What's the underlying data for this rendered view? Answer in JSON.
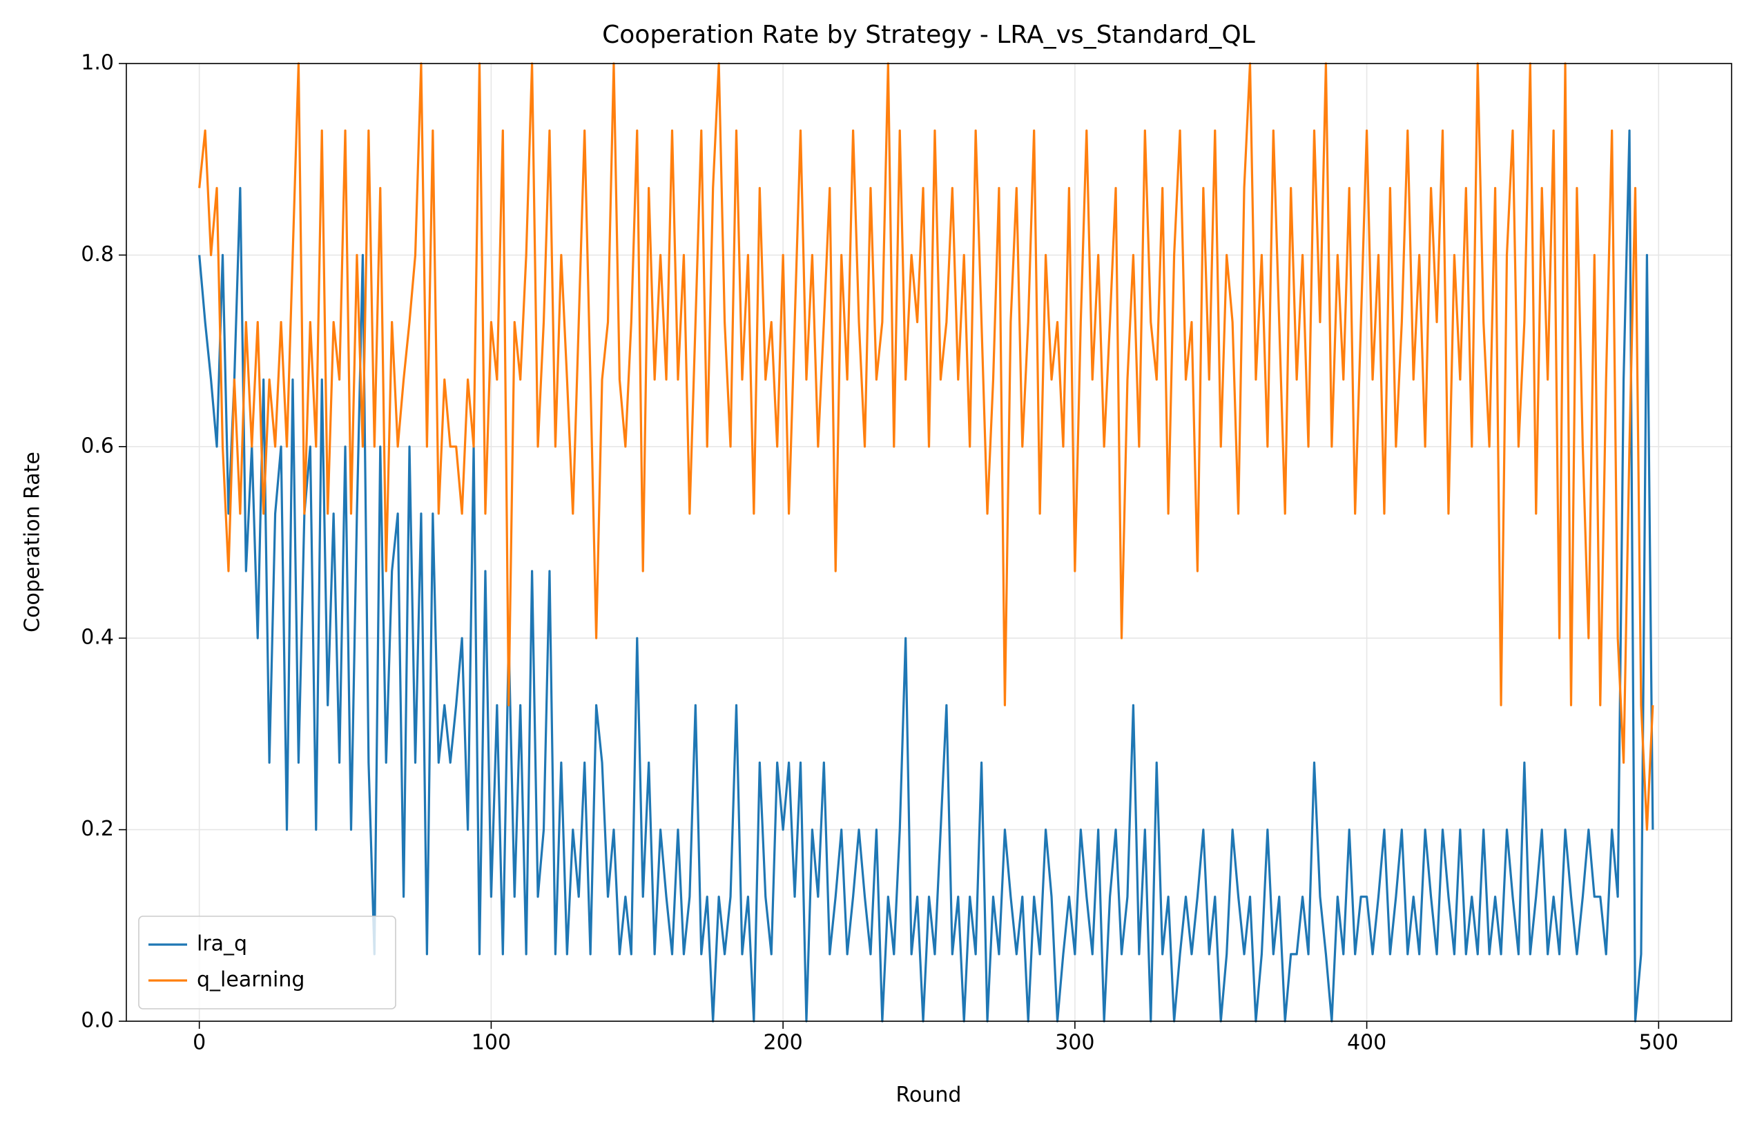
{
  "chart_data": {
    "type": "line",
    "title": "Cooperation Rate by Strategy - LRA_vs_Standard_QL",
    "x_label": "Round",
    "y_label": "Cooperation Rate",
    "x": [
      0,
      2,
      4,
      6,
      8,
      10,
      12,
      14,
      16,
      18,
      20,
      22,
      24,
      26,
      28,
      30,
      32,
      34,
      36,
      38,
      40,
      42,
      44,
      46,
      48,
      50,
      52,
      54,
      56,
      58,
      60,
      62,
      64,
      66,
      68,
      70,
      72,
      74,
      76,
      78,
      80,
      82,
      84,
      86,
      88,
      90,
      92,
      94,
      96,
      98,
      100,
      102,
      104,
      106,
      108,
      110,
      112,
      114,
      116,
      118,
      120,
      122,
      124,
      126,
      128,
      130,
      132,
      134,
      136,
      138,
      140,
      142,
      144,
      146,
      148,
      150,
      152,
      154,
      156,
      158,
      160,
      162,
      164,
      166,
      168,
      170,
      172,
      174,
      176,
      178,
      180,
      182,
      184,
      186,
      188,
      190,
      192,
      194,
      196,
      198,
      200,
      202,
      204,
      206,
      208,
      210,
      212,
      214,
      216,
      218,
      220,
      222,
      224,
      226,
      228,
      230,
      232,
      234,
      236,
      238,
      240,
      242,
      244,
      246,
      248,
      250,
      252,
      254,
      256,
      258,
      260,
      262,
      264,
      266,
      268,
      270,
      272,
      274,
      276,
      278,
      280,
      282,
      284,
      286,
      288,
      290,
      292,
      294,
      296,
      298,
      300,
      302,
      304,
      306,
      308,
      310,
      312,
      314,
      316,
      318,
      320,
      322,
      324,
      326,
      328,
      330,
      332,
      334,
      336,
      338,
      340,
      342,
      344,
      346,
      348,
      350,
      352,
      354,
      356,
      358,
      360,
      362,
      364,
      366,
      368,
      370,
      372,
      374,
      376,
      378,
      380,
      382,
      384,
      386,
      388,
      390,
      392,
      394,
      396,
      398,
      400,
      402,
      404,
      406,
      408,
      410,
      412,
      414,
      416,
      418,
      420,
      422,
      424,
      426,
      428,
      430,
      432,
      434,
      436,
      438,
      440,
      442,
      444,
      446,
      448,
      450,
      452,
      454,
      456,
      458,
      460,
      462,
      464,
      466,
      468,
      470,
      472,
      474,
      476,
      478,
      480,
      482,
      484,
      486,
      488,
      490,
      492,
      494,
      496,
      498
    ],
    "series": [
      {
        "name": "lra_q",
        "color": "#1f77b4",
        "values": [
          0.8,
          0.73,
          0.67,
          0.6,
          0.8,
          0.53,
          0.67,
          0.87,
          0.47,
          0.6,
          0.4,
          0.67,
          0.27,
          0.53,
          0.6,
          0.2,
          0.67,
          0.27,
          0.53,
          0.6,
          0.2,
          0.67,
          0.33,
          0.53,
          0.27,
          0.6,
          0.2,
          0.53,
          0.8,
          0.27,
          0.07,
          0.6,
          0.27,
          0.47,
          0.53,
          0.13,
          0.6,
          0.27,
          0.53,
          0.07,
          0.53,
          0.27,
          0.33,
          0.27,
          0.33,
          0.4,
          0.2,
          0.6,
          0.07,
          0.47,
          0.13,
          0.33,
          0.07,
          0.4,
          0.13,
          0.33,
          0.07,
          0.47,
          0.13,
          0.2,
          0.47,
          0.07,
          0.27,
          0.07,
          0.2,
          0.13,
          0.27,
          0.07,
          0.33,
          0.27,
          0.13,
          0.2,
          0.07,
          0.13,
          0.07,
          0.4,
          0.13,
          0.27,
          0.07,
          0.2,
          0.13,
          0.07,
          0.2,
          0.07,
          0.13,
          0.33,
          0.07,
          0.13,
          0.0,
          0.13,
          0.07,
          0.13,
          0.33,
          0.07,
          0.13,
          0.0,
          0.27,
          0.13,
          0.07,
          0.27,
          0.2,
          0.27,
          0.13,
          0.27,
          0.0,
          0.2,
          0.13,
          0.27,
          0.07,
          0.13,
          0.2,
          0.07,
          0.13,
          0.2,
          0.13,
          0.07,
          0.2,
          0.0,
          0.13,
          0.07,
          0.2,
          0.4,
          0.07,
          0.13,
          0.0,
          0.13,
          0.07,
          0.2,
          0.33,
          0.07,
          0.13,
          0.0,
          0.13,
          0.07,
          0.27,
          0.0,
          0.13,
          0.07,
          0.2,
          0.13,
          0.07,
          0.13,
          0.0,
          0.13,
          0.07,
          0.2,
          0.13,
          0.0,
          0.07,
          0.13,
          0.07,
          0.2,
          0.13,
          0.07,
          0.2,
          0.0,
          0.13,
          0.2,
          0.07,
          0.13,
          0.33,
          0.07,
          0.2,
          0.0,
          0.27,
          0.07,
          0.13,
          0.0,
          0.07,
          0.13,
          0.07,
          0.13,
          0.2,
          0.07,
          0.13,
          0.0,
          0.07,
          0.2,
          0.13,
          0.07,
          0.13,
          0.0,
          0.07,
          0.2,
          0.07,
          0.13,
          0.0,
          0.07,
          0.07,
          0.13,
          0.07,
          0.27,
          0.13,
          0.07,
          0.0,
          0.13,
          0.07,
          0.2,
          0.07,
          0.13,
          0.13,
          0.07,
          0.13,
          0.2,
          0.07,
          0.13,
          0.2,
          0.07,
          0.13,
          0.07,
          0.2,
          0.13,
          0.07,
          0.2,
          0.13,
          0.07,
          0.2,
          0.07,
          0.13,
          0.07,
          0.2,
          0.07,
          0.13,
          0.07,
          0.2,
          0.13,
          0.07,
          0.27,
          0.07,
          0.13,
          0.2,
          0.07,
          0.13,
          0.07,
          0.2,
          0.13,
          0.07,
          0.13,
          0.2,
          0.13,
          0.13,
          0.07,
          0.2,
          0.13,
          0.67,
          0.93,
          0.0,
          0.07,
          0.8,
          0.2
        ]
      },
      {
        "name": "q_learning",
        "color": "#ff7f0e",
        "values": [
          0.87,
          0.93,
          0.8,
          0.87,
          0.6,
          0.47,
          0.67,
          0.53,
          0.73,
          0.6,
          0.73,
          0.53,
          0.67,
          0.6,
          0.73,
          0.6,
          0.8,
          1.0,
          0.53,
          0.73,
          0.6,
          0.93,
          0.53,
          0.73,
          0.67,
          0.93,
          0.53,
          0.8,
          0.6,
          0.93,
          0.6,
          0.87,
          0.47,
          0.73,
          0.6,
          0.67,
          0.73,
          0.8,
          1.0,
          0.6,
          0.93,
          0.53,
          0.67,
          0.6,
          0.6,
          0.53,
          0.67,
          0.6,
          1.0,
          0.53,
          0.73,
          0.67,
          0.93,
          0.33,
          0.73,
          0.67,
          0.8,
          1.0,
          0.6,
          0.73,
          0.93,
          0.6,
          0.8,
          0.67,
          0.53,
          0.73,
          0.93,
          0.67,
          0.4,
          0.67,
          0.73,
          1.0,
          0.67,
          0.6,
          0.73,
          0.93,
          0.47,
          0.87,
          0.67,
          0.8,
          0.67,
          0.93,
          0.67,
          0.8,
          0.53,
          0.73,
          0.93,
          0.6,
          0.87,
          1.0,
          0.73,
          0.6,
          0.93,
          0.67,
          0.8,
          0.53,
          0.87,
          0.67,
          0.73,
          0.6,
          0.8,
          0.53,
          0.73,
          0.93,
          0.67,
          0.8,
          0.6,
          0.73,
          0.87,
          0.47,
          0.8,
          0.67,
          0.93,
          0.73,
          0.6,
          0.87,
          0.67,
          0.73,
          1.0,
          0.6,
          0.93,
          0.67,
          0.8,
          0.73,
          0.87,
          0.6,
          0.93,
          0.67,
          0.73,
          0.87,
          0.67,
          0.8,
          0.6,
          0.93,
          0.73,
          0.53,
          0.67,
          0.87,
          0.33,
          0.73,
          0.87,
          0.6,
          0.73,
          0.93,
          0.53,
          0.8,
          0.67,
          0.73,
          0.6,
          0.87,
          0.47,
          0.73,
          0.93,
          0.67,
          0.8,
          0.6,
          0.73,
          0.87,
          0.4,
          0.67,
          0.8,
          0.6,
          0.93,
          0.73,
          0.67,
          0.87,
          0.53,
          0.8,
          0.93,
          0.67,
          0.73,
          0.47,
          0.87,
          0.67,
          0.93,
          0.6,
          0.8,
          0.73,
          0.53,
          0.87,
          1.0,
          0.67,
          0.8,
          0.6,
          0.93,
          0.73,
          0.53,
          0.87,
          0.67,
          0.8,
          0.6,
          0.93,
          0.73,
          1.0,
          0.6,
          0.8,
          0.67,
          0.87,
          0.53,
          0.73,
          0.93,
          0.67,
          0.8,
          0.53,
          0.87,
          0.6,
          0.73,
          0.93,
          0.67,
          0.8,
          0.6,
          0.87,
          0.73,
          0.93,
          0.53,
          0.8,
          0.67,
          0.87,
          0.6,
          1.0,
          0.73,
          0.6,
          0.87,
          0.33,
          0.8,
          0.93,
          0.6,
          0.73,
          1.0,
          0.53,
          0.87,
          0.67,
          0.93,
          0.4,
          1.0,
          0.33,
          0.87,
          0.6,
          0.4,
          0.8,
          0.33,
          0.67,
          0.93,
          0.4,
          0.27,
          0.6,
          0.87,
          0.33,
          0.2,
          0.33
        ]
      }
    ],
    "xlim": [
      -25,
      525
    ],
    "ylim": [
      0,
      1
    ],
    "xticks": [
      0,
      100,
      200,
      300,
      400,
      500
    ],
    "yticks": [
      {
        "value": 0,
        "label": "0.0"
      },
      {
        "value": 0.2,
        "label": "0.2"
      },
      {
        "value": 0.4,
        "label": "0.4"
      },
      {
        "value": 0.6,
        "label": "0.6"
      },
      {
        "value": 0.8,
        "label": "0.8"
      },
      {
        "value": 1,
        "label": "1.0"
      }
    ],
    "grid": true,
    "legend": "lower left"
  }
}
